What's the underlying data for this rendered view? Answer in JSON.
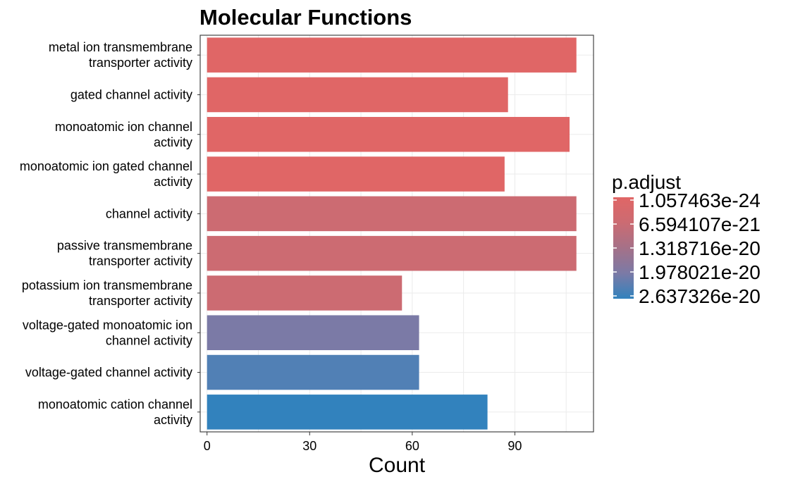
{
  "chart_data": {
    "type": "bar",
    "orientation": "horizontal",
    "title": "Molecular Functions",
    "xlabel": "Count",
    "ylabel": "",
    "xlim": [
      -2,
      113
    ],
    "xticks": [
      0,
      30,
      60,
      90
    ],
    "grid": true,
    "categories": [
      "metal ion transmembrane\ntransporter activity",
      "gated channel activity",
      "monoatomic ion channel\nactivity",
      "monoatomic ion gated channel\nactivity",
      "channel activity",
      "passive transmembrane\ntransporter activity",
      "potassium ion transmembrane\ntransporter activity",
      "voltage-gated monoatomic ion\nchannel activity",
      "voltage-gated channel activity",
      "monoatomic cation channel\nactivity"
    ],
    "values": [
      108,
      88,
      106,
      87,
      108,
      108,
      57,
      62,
      62,
      82
    ],
    "bar_colors": [
      "#e06666",
      "#e06666",
      "#e06666",
      "#e06666",
      "#cc6b72",
      "#cc6b72",
      "#cc6b72",
      "#7b7aa6",
      "#5180b5",
      "#3282bd"
    ],
    "legend": {
      "title": "p.adjust",
      "position": "right",
      "labels": [
        "1.057463e-24",
        "6.594107e-21",
        "1.318716e-20",
        "1.978021e-20",
        "2.637326e-20"
      ],
      "gradient_colors": [
        "#e06666",
        "#cc6b72",
        "#a57188",
        "#7b7aa6",
        "#3282bd"
      ]
    }
  }
}
